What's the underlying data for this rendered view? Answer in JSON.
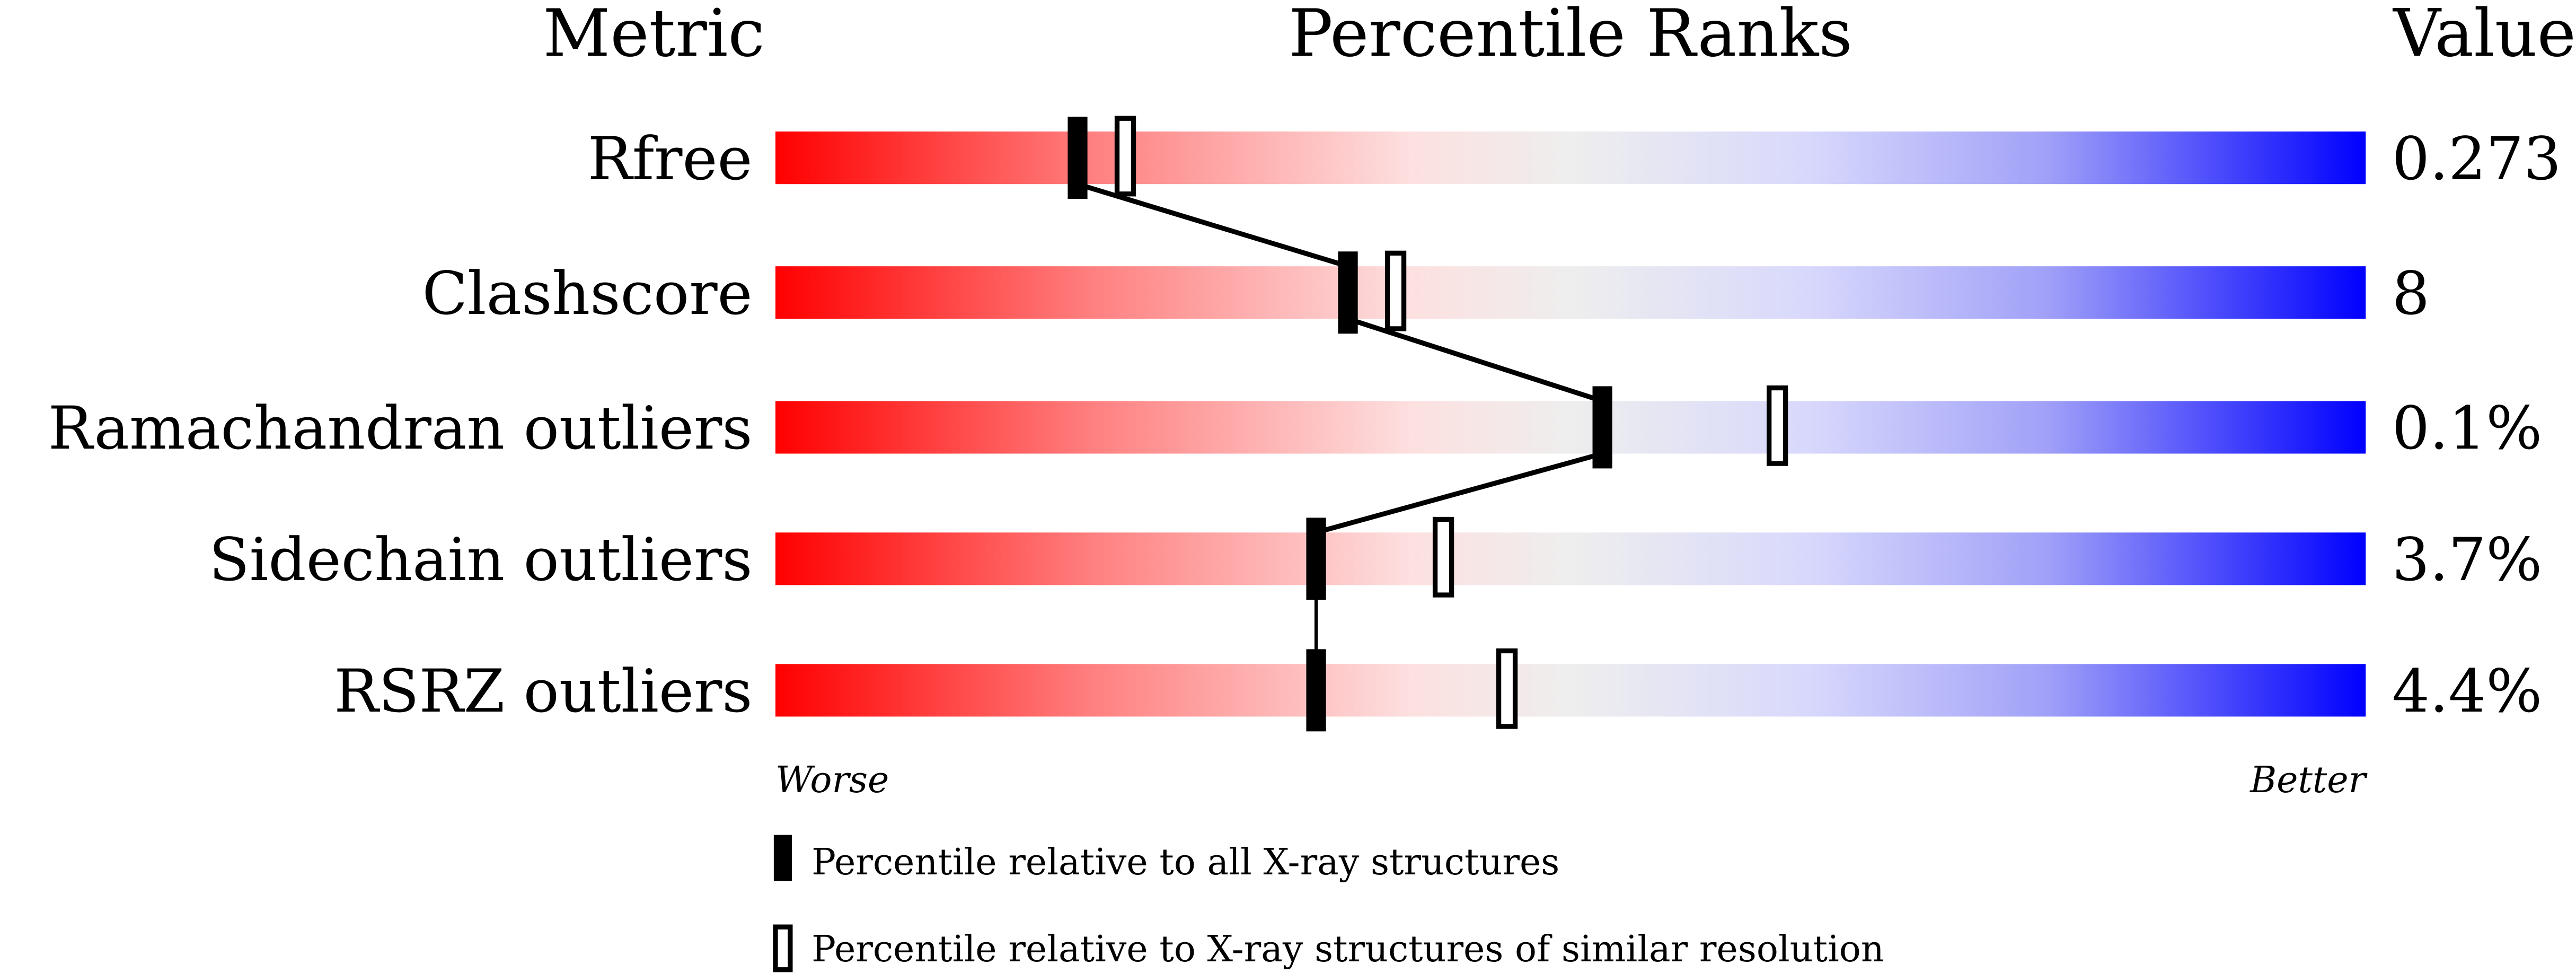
{
  "chart_data": {
    "type": "percentile-ranks",
    "headers": {
      "metric": "Metric",
      "ranks": "Percentile Ranks",
      "value": "Value"
    },
    "axis": {
      "worse": "Worse",
      "better": "Better",
      "range": [
        0,
        100
      ]
    },
    "gradient_colors": [
      "#ff0000",
      "#fde0e0",
      "#eeeeee",
      "#d8d8fc",
      "#0000ff"
    ],
    "metrics": [
      {
        "name": "Rfree",
        "value": "0.273",
        "percentile_all": 19,
        "percentile_similar": 22
      },
      {
        "name": "Clashscore",
        "value": "8",
        "percentile_all": 36,
        "percentile_similar": 39
      },
      {
        "name": "Ramachandran outliers",
        "value": "0.1%",
        "percentile_all": 52,
        "percentile_similar": 63
      },
      {
        "name": "Sidechain outliers",
        "value": "3.7%",
        "percentile_all": 34,
        "percentile_similar": 42
      },
      {
        "name": "RSRZ outliers",
        "value": "4.4%",
        "percentile_all": 34,
        "percentile_similar": 46
      }
    ],
    "legend": {
      "all": "Percentile relative to all X-ray structures",
      "similar": "Percentile relative to X-ray structures of similar resolution"
    }
  }
}
